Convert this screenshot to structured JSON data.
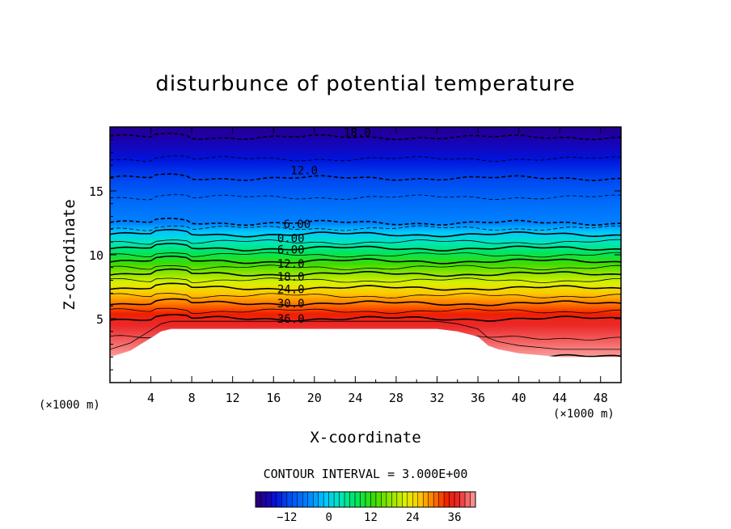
{
  "chart_data": {
    "type": "contour",
    "title": "disturbunce of potential temperature",
    "xlabel": "X-coordinate",
    "ylabel": "Z-coordinate",
    "x_unit": "(×1000 m)",
    "y_unit": "(×1000 m)",
    "xlim": [
      0,
      50
    ],
    "ylim": [
      0,
      20
    ],
    "x_ticks": [
      4,
      8,
      12,
      16,
      20,
      24,
      28,
      32,
      36,
      40,
      44,
      48
    ],
    "y_ticks": [
      5,
      10,
      15
    ],
    "contour_interval_text": "CONTOUR INTERVAL = 3.000E+00",
    "contour_interval": 3.0,
    "colorbar": {
      "min": -21,
      "max": 42,
      "tick_values": [
        -12,
        0,
        12,
        24,
        36
      ],
      "tick_labels": [
        "−12",
        "0",
        "12",
        "24",
        "36"
      ]
    },
    "contour_labels": [
      {
        "text": "18.0",
        "x": 24.2,
        "z": 19.6
      },
      {
        "text": "12.0",
        "x": 19.0,
        "z": 16.6
      },
      {
        "text": "6.00",
        "x": 18.3,
        "z": 12.4
      },
      {
        "text": "0.00",
        "x": 17.7,
        "z": 11.3
      },
      {
        "text": "6.00",
        "x": 17.7,
        "z": 10.4
      },
      {
        "text": "12.0",
        "x": 17.7,
        "z": 9.3
      },
      {
        "text": "18.0",
        "x": 17.7,
        "z": 8.3
      },
      {
        "text": "24.0",
        "x": 17.7,
        "z": 7.3
      },
      {
        "text": "30.0",
        "x": 17.7,
        "z": 6.2
      },
      {
        "text": "36.0",
        "x": 17.7,
        "z": 5.0
      }
    ],
    "field_profile": {
      "description": "horizontally layered field; values by height (z in ×1000 m)",
      "z": [
        2.0,
        3.0,
        4.0,
        5.0,
        6.0,
        7.0,
        8.0,
        9.0,
        10.0,
        11.0,
        11.8,
        12.5,
        14.0,
        16.0,
        18.0,
        19.8
      ],
      "value": [
        42,
        40,
        38,
        36,
        31,
        26,
        21,
        15,
        9,
        3,
        -1,
        -6,
        -8,
        -12,
        -16,
        -19
      ]
    },
    "terrain": {
      "description": "lower boundary (white region) height in ×1000 m",
      "x": [
        0,
        2,
        4,
        5,
        6,
        8,
        12,
        16,
        20,
        24,
        28,
        32,
        34,
        36,
        37,
        38,
        40,
        44,
        48,
        50
      ],
      "z": [
        2.0,
        2.5,
        3.5,
        4.0,
        4.2,
        4.2,
        4.2,
        4.2,
        4.2,
        4.2,
        4.2,
        4.2,
        4.0,
        3.6,
        2.9,
        2.6,
        2.3,
        2.0,
        2.0,
        2.0
      ]
    }
  }
}
